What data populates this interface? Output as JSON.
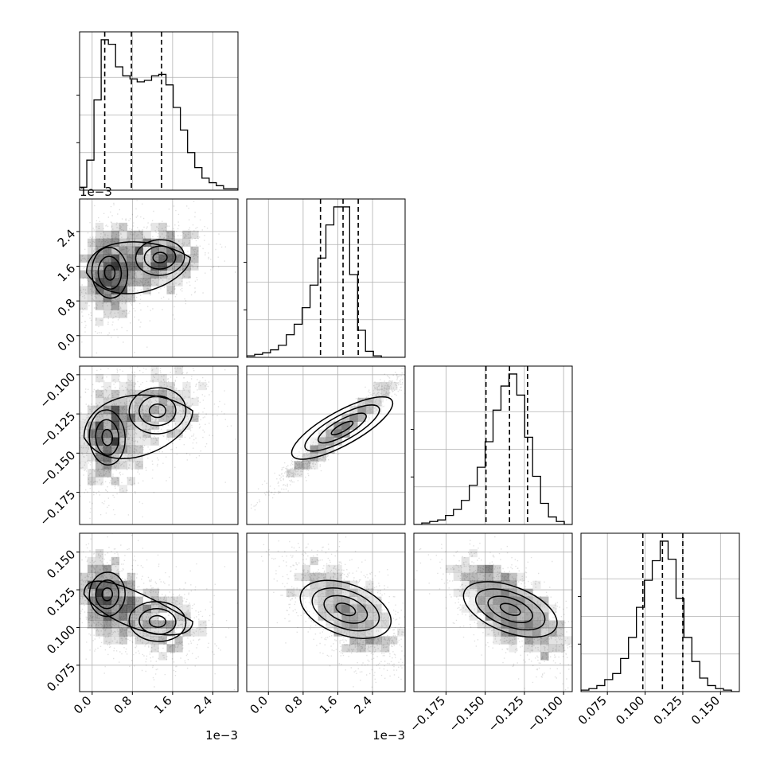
{
  "figure": {
    "type": "corner-plot"
  },
  "chart_data": {
    "type": "corner",
    "parameters": [
      {
        "id": "p0",
        "offset_label": "1e−3",
        "range": [
          -0.25,
          2.9
        ],
        "ticks": [
          0.0,
          0.8,
          1.6,
          2.4
        ],
        "tick_labels": [
          "0.0",
          "0.8",
          "1.6",
          "2.4"
        ],
        "quantiles": [
          0.25,
          0.78,
          1.38
        ],
        "hist": {
          "bins": 22,
          "heights": [
            2,
            20,
            60,
            100,
            97,
            82,
            76,
            74,
            72,
            73,
            76,
            77,
            70,
            55,
            40,
            25,
            15,
            8,
            5,
            3,
            1,
            1
          ]
        }
      },
      {
        "id": "p1",
        "offset_label": "1e−3",
        "range": [
          -0.5,
          3.15
        ],
        "ticks": [
          0.0,
          0.8,
          1.6,
          2.4
        ],
        "tick_labels": [
          "0.0",
          "0.8",
          "1.6",
          "2.4"
        ],
        "quantiles": [
          1.2,
          1.72,
          2.07
        ],
        "hist": {
          "bins": 20,
          "heights": [
            1,
            2,
            3,
            5,
            8,
            15,
            22,
            33,
            48,
            66,
            88,
            100,
            100,
            55,
            18,
            4,
            1,
            0,
            0,
            0
          ]
        }
      },
      {
        "id": "p2",
        "offset_label": "",
        "range": [
          -0.1955,
          -0.0945
        ],
        "ticks": [
          -0.175,
          -0.15,
          -0.125,
          -0.1
        ],
        "tick_labels": [
          "−0.175",
          "−0.150",
          "−0.125",
          "−0.100"
        ],
        "quantiles": [
          -0.1495,
          -0.1345,
          -0.123
        ],
        "hist": {
          "bins": 20,
          "heights": [
            0,
            1,
            2,
            3,
            6,
            10,
            16,
            26,
            38,
            55,
            76,
            92,
            100,
            86,
            58,
            32,
            14,
            5,
            2,
            0
          ]
        }
      },
      {
        "id": "p3",
        "offset_label": "",
        "range": [
          0.0575,
          0.1625
        ],
        "ticks": [
          0.075,
          0.1,
          0.125,
          0.15
        ],
        "tick_labels": [
          "0.075",
          "0.100",
          "0.125",
          "0.150"
        ],
        "quantiles": [
          0.0985,
          0.1115,
          0.125
        ],
        "hist": {
          "bins": 20,
          "heights": [
            1,
            2,
            4,
            8,
            12,
            22,
            36,
            56,
            74,
            87,
            100,
            88,
            62,
            36,
            20,
            9,
            4,
            2,
            1,
            0
          ]
        }
      }
    ],
    "pairs": [
      {
        "row": 1,
        "col": 0,
        "modes": [
          {
            "m": [
              0.35,
              1.45
            ],
            "s": [
              0.22,
              0.4
            ],
            "w": 0.55
          },
          {
            "m": [
              1.35,
              1.8
            ],
            "s": [
              0.3,
              0.28
            ],
            "w": 0.45
          }
        ],
        "rho": 0.1
      },
      {
        "row": 2,
        "col": 0,
        "modes": [
          {
            "m": [
              0.3,
              -0.14
            ],
            "s": [
              0.22,
              0.012
            ],
            "w": 0.55
          },
          {
            "m": [
              1.3,
              -0.123
            ],
            "s": [
              0.35,
              0.01
            ],
            "w": 0.45
          }
        ],
        "rho": 0.1
      },
      {
        "row": 2,
        "col": 1,
        "modes": [
          {
            "m": [
              1.7,
              -0.134
            ],
            "s": [
              0.45,
              0.011
            ],
            "w": 1.0
          }
        ],
        "rho": 0.97
      },
      {
        "row": 3,
        "col": 0,
        "modes": [
          {
            "m": [
              0.3,
              0.122
            ],
            "s": [
              0.22,
              0.01
            ],
            "w": 0.55
          },
          {
            "m": [
              1.3,
              0.104
            ],
            "s": [
              0.35,
              0.009
            ],
            "w": 0.45
          }
        ],
        "rho": -0.1
      },
      {
        "row": 3,
        "col": 1,
        "modes": [
          {
            "m": [
              1.78,
              0.112
            ],
            "s": [
              0.42,
              0.012
            ],
            "w": 1.0
          }
        ],
        "rho": -0.6
      },
      {
        "row": 3,
        "col": 2,
        "modes": [
          {
            "m": [
              -0.134,
              0.112
            ],
            "s": [
              0.012,
              0.011
            ],
            "w": 1.0
          }
        ],
        "rho": -0.62
      }
    ]
  }
}
